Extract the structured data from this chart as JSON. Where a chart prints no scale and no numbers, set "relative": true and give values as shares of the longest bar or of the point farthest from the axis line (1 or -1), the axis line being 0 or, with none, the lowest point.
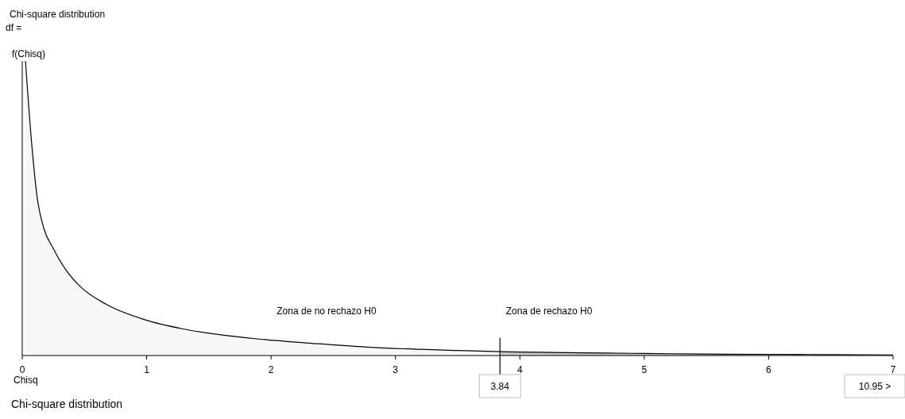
{
  "chart_data": {
    "type": "area",
    "title": "Chi-square distribution",
    "subtitle": "df =",
    "ylabel": "f(Chisq)",
    "xlabel": "Chisq",
    "relative": true,
    "xlim": [
      0,
      7
    ],
    "xticks": [
      0,
      1,
      2,
      3,
      4,
      5,
      6,
      7
    ],
    "series": [
      {
        "color": "#f7f7f7",
        "x": [
          0.026,
          0.077,
          0.121,
          0.172,
          0.249,
          0.351,
          0.46,
          0.67,
          0.99,
          1.31,
          1.95,
          2.38,
          2.8,
          3.2,
          3.5,
          3.84
        ],
        "values": [
          1,
          0.714,
          0.534,
          0.434,
          0.364,
          0.291,
          0.237,
          0.175,
          0.121,
          0.089,
          0.054,
          0.04,
          0.028,
          0.021,
          0.017,
          0.013
        ]
      },
      {
        "color": "#c8c8c8",
        "x": [
          3.84,
          4,
          4.5,
          5,
          5.5,
          6,
          6.5,
          7
        ],
        "values": [
          0.013,
          0.012,
          0.009,
          0.007,
          0.005,
          0.004,
          0.003,
          0.002
        ]
      }
    ],
    "ref_lines": [
      {
        "axis": "x",
        "value": 3.84,
        "label": "3.84",
        "color": "#000000"
      }
    ],
    "annotations": [
      "Zona de no rechazo H0",
      "Zona de rechazo H0",
      "10.95 >",
      "Chi-square distribution"
    ]
  }
}
